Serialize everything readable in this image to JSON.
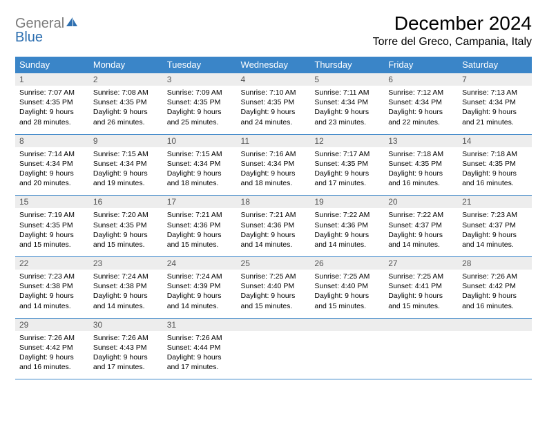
{
  "logo": {
    "word1": "General",
    "word2": "Blue"
  },
  "title": "December 2024",
  "location": "Torre del Greco, Campania, Italy",
  "colors": {
    "header_bg": "#3a85c8",
    "header_text": "#ffffff",
    "daynum_bg": "#ededed",
    "rule": "#3a85c8",
    "logo_gray": "#7a7a7a",
    "logo_blue": "#2d6fb0"
  },
  "weekdays": [
    "Sunday",
    "Monday",
    "Tuesday",
    "Wednesday",
    "Thursday",
    "Friday",
    "Saturday"
  ],
  "rows": [
    [
      {
        "n": "1",
        "sr": "7:07 AM",
        "ss": "4:35 PM",
        "dl": "9 hours and 28 minutes."
      },
      {
        "n": "2",
        "sr": "7:08 AM",
        "ss": "4:35 PM",
        "dl": "9 hours and 26 minutes."
      },
      {
        "n": "3",
        "sr": "7:09 AM",
        "ss": "4:35 PM",
        "dl": "9 hours and 25 minutes."
      },
      {
        "n": "4",
        "sr": "7:10 AM",
        "ss": "4:35 PM",
        "dl": "9 hours and 24 minutes."
      },
      {
        "n": "5",
        "sr": "7:11 AM",
        "ss": "4:34 PM",
        "dl": "9 hours and 23 minutes."
      },
      {
        "n": "6",
        "sr": "7:12 AM",
        "ss": "4:34 PM",
        "dl": "9 hours and 22 minutes."
      },
      {
        "n": "7",
        "sr": "7:13 AM",
        "ss": "4:34 PM",
        "dl": "9 hours and 21 minutes."
      }
    ],
    [
      {
        "n": "8",
        "sr": "7:14 AM",
        "ss": "4:34 PM",
        "dl": "9 hours and 20 minutes."
      },
      {
        "n": "9",
        "sr": "7:15 AM",
        "ss": "4:34 PM",
        "dl": "9 hours and 19 minutes."
      },
      {
        "n": "10",
        "sr": "7:15 AM",
        "ss": "4:34 PM",
        "dl": "9 hours and 18 minutes."
      },
      {
        "n": "11",
        "sr": "7:16 AM",
        "ss": "4:34 PM",
        "dl": "9 hours and 18 minutes."
      },
      {
        "n": "12",
        "sr": "7:17 AM",
        "ss": "4:35 PM",
        "dl": "9 hours and 17 minutes."
      },
      {
        "n": "13",
        "sr": "7:18 AM",
        "ss": "4:35 PM",
        "dl": "9 hours and 16 minutes."
      },
      {
        "n": "14",
        "sr": "7:18 AM",
        "ss": "4:35 PM",
        "dl": "9 hours and 16 minutes."
      }
    ],
    [
      {
        "n": "15",
        "sr": "7:19 AM",
        "ss": "4:35 PM",
        "dl": "9 hours and 15 minutes."
      },
      {
        "n": "16",
        "sr": "7:20 AM",
        "ss": "4:35 PM",
        "dl": "9 hours and 15 minutes."
      },
      {
        "n": "17",
        "sr": "7:21 AM",
        "ss": "4:36 PM",
        "dl": "9 hours and 15 minutes."
      },
      {
        "n": "18",
        "sr": "7:21 AM",
        "ss": "4:36 PM",
        "dl": "9 hours and 14 minutes."
      },
      {
        "n": "19",
        "sr": "7:22 AM",
        "ss": "4:36 PM",
        "dl": "9 hours and 14 minutes."
      },
      {
        "n": "20",
        "sr": "7:22 AM",
        "ss": "4:37 PM",
        "dl": "9 hours and 14 minutes."
      },
      {
        "n": "21",
        "sr": "7:23 AM",
        "ss": "4:37 PM",
        "dl": "9 hours and 14 minutes."
      }
    ],
    [
      {
        "n": "22",
        "sr": "7:23 AM",
        "ss": "4:38 PM",
        "dl": "9 hours and 14 minutes."
      },
      {
        "n": "23",
        "sr": "7:24 AM",
        "ss": "4:38 PM",
        "dl": "9 hours and 14 minutes."
      },
      {
        "n": "24",
        "sr": "7:24 AM",
        "ss": "4:39 PM",
        "dl": "9 hours and 14 minutes."
      },
      {
        "n": "25",
        "sr": "7:25 AM",
        "ss": "4:40 PM",
        "dl": "9 hours and 15 minutes."
      },
      {
        "n": "26",
        "sr": "7:25 AM",
        "ss": "4:40 PM",
        "dl": "9 hours and 15 minutes."
      },
      {
        "n": "27",
        "sr": "7:25 AM",
        "ss": "4:41 PM",
        "dl": "9 hours and 15 minutes."
      },
      {
        "n": "28",
        "sr": "7:26 AM",
        "ss": "4:42 PM",
        "dl": "9 hours and 16 minutes."
      }
    ],
    [
      {
        "n": "29",
        "sr": "7:26 AM",
        "ss": "4:42 PM",
        "dl": "9 hours and 16 minutes."
      },
      {
        "n": "30",
        "sr": "7:26 AM",
        "ss": "4:43 PM",
        "dl": "9 hours and 17 minutes."
      },
      {
        "n": "31",
        "sr": "7:26 AM",
        "ss": "4:44 PM",
        "dl": "9 hours and 17 minutes."
      },
      null,
      null,
      null,
      null
    ]
  ],
  "labels": {
    "sunrise": "Sunrise: ",
    "sunset": "Sunset: ",
    "daylight": "Daylight: "
  }
}
